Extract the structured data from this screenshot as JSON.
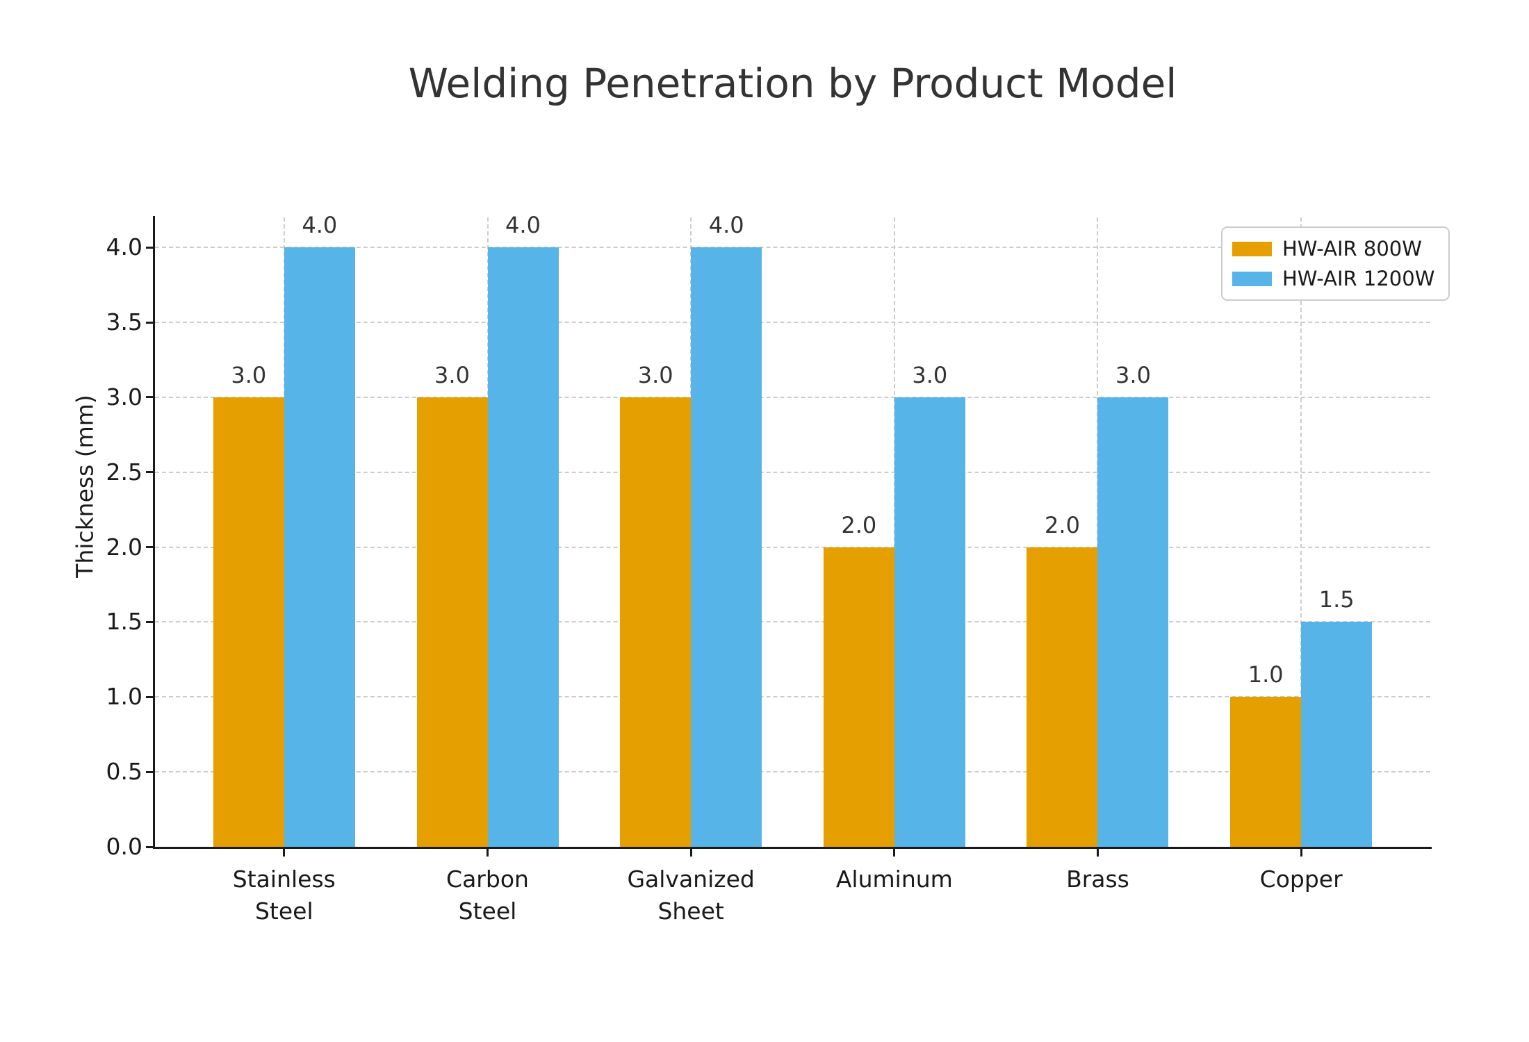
{
  "chart_data": {
    "type": "bar",
    "title": "Welding Penetration by Product Model",
    "xlabel": "",
    "ylabel": "Thickness (mm)",
    "categories": [
      "Stainless\nSteel",
      "Carbon\nSteel",
      "Galvanized\nSheet",
      "Aluminum",
      "Brass",
      "Copper"
    ],
    "series": [
      {
        "name": "HW-AIR 800W",
        "color": "#E69F00",
        "values": [
          3.0,
          3.0,
          3.0,
          2.0,
          2.0,
          1.0
        ]
      },
      {
        "name": "HW-AIR 1200W",
        "color": "#56B4E9",
        "values": [
          4.0,
          4.0,
          4.0,
          3.0,
          3.0,
          1.5
        ]
      }
    ],
    "yticks": [
      0.0,
      0.5,
      1.0,
      1.5,
      2.0,
      2.5,
      3.0,
      3.5,
      4.0
    ],
    "ylim": [
      0,
      4.2
    ],
    "grid": true,
    "grid_style": "dashed",
    "grid_color": "#cdcdcd",
    "axis_color": "#1a1a1a",
    "text_color": "#333333",
    "background_color": "#ffffff",
    "legend_position": "top-right",
    "bar_value_labels": true,
    "bar_value_format": "one-decimal"
  }
}
